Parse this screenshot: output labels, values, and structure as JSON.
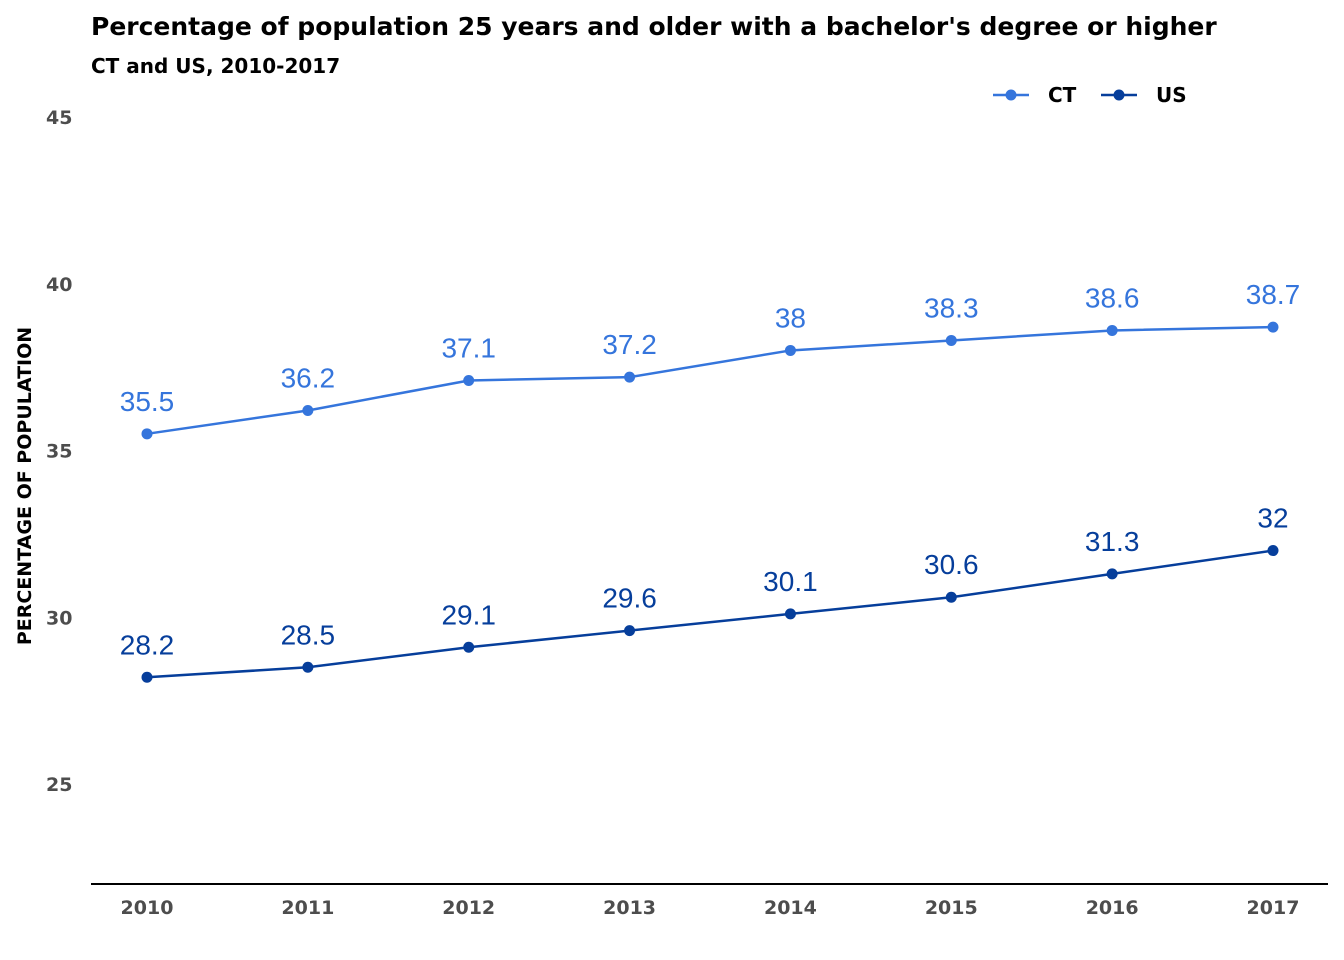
{
  "chart_data": {
    "type": "line",
    "title": "Percentage of population 25 years and older with a bachelor's degree or higher",
    "subtitle": "CT and US, 2010-2017",
    "ylabel": "PERCENTAGE OF POPULATION",
    "xlabel": "",
    "categories": [
      "2010",
      "2011",
      "2012",
      "2013",
      "2014",
      "2015",
      "2016",
      "2017"
    ],
    "ylim": [
      22,
      45
    ],
    "yticks": [
      "45",
      "40",
      "35",
      "30",
      "25"
    ],
    "grid": false,
    "legend": "top-right",
    "series": [
      {
        "name": "CT",
        "color": "#3575dc",
        "values": [
          35.5,
          36.2,
          37.1,
          37.2,
          38,
          38.3,
          38.6,
          38.7
        ],
        "labels": [
          "35.5",
          "36.2",
          "37.1",
          "37.2",
          "38",
          "38.3",
          "38.6",
          "38.7"
        ]
      },
      {
        "name": "US",
        "color": "#063e9b",
        "values": [
          28.2,
          28.5,
          29.1,
          29.6,
          30.1,
          30.6,
          31.3,
          32
        ],
        "labels": [
          "28.2",
          "28.5",
          "29.1",
          "29.6",
          "30.1",
          "30.6",
          "31.3",
          "32"
        ]
      }
    ]
  }
}
